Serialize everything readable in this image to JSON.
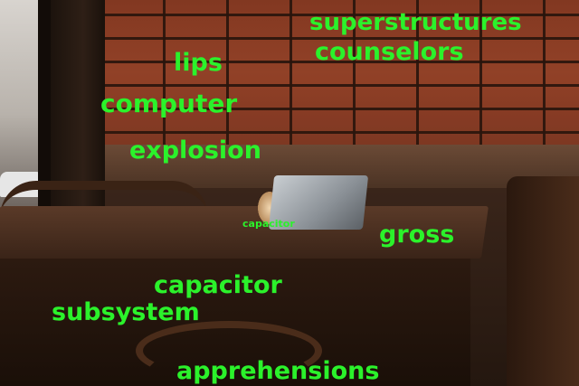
{
  "words": [
    {
      "key": "superstructures",
      "text": "superstructures"
    },
    {
      "key": "counselors",
      "text": "counselors"
    },
    {
      "key": "lips",
      "text": "lips"
    },
    {
      "key": "computer",
      "text": "computer"
    },
    {
      "key": "explosion",
      "text": "explosion"
    },
    {
      "key": "capacitor_small",
      "text": "capacitor"
    },
    {
      "key": "gross",
      "text": "gross"
    },
    {
      "key": "capacitor",
      "text": "capacitor"
    },
    {
      "key": "subsystem",
      "text": "subsystem"
    },
    {
      "key": "apprehensions",
      "text": "apprehensions"
    }
  ],
  "colors": {
    "word": "#2bf22b"
  }
}
